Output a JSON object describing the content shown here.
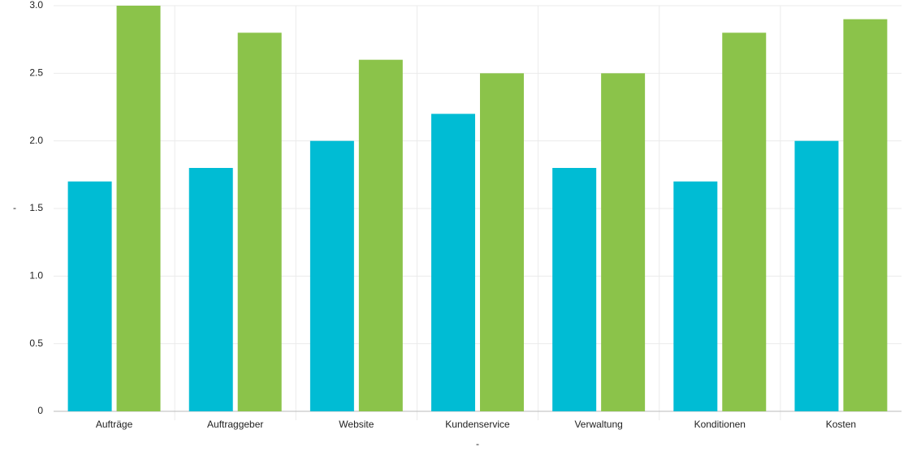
{
  "chart_data": {
    "type": "bar",
    "categories": [
      "Aufträge",
      "Auftraggeber",
      "Website",
      "Kundenservice",
      "Verwaltung",
      "Konditionen",
      "Kosten"
    ],
    "series": [
      {
        "color": "#00bcd4",
        "values": [
          1.7,
          1.8,
          2.0,
          2.2,
          1.8,
          1.7,
          2.0
        ]
      },
      {
        "color": "#8bc34a",
        "values": [
          3.0,
          2.8,
          2.6,
          2.5,
          2.5,
          2.8,
          2.9
        ]
      }
    ],
    "x_label": "-",
    "y_label": "-",
    "ylim": [
      0,
      3
    ],
    "yticks": [
      0,
      0.5,
      {
        "value": 1,
        "label": "1.0"
      },
      1.5,
      {
        "value": 2,
        "label": "2.0"
      },
      2.5,
      {
        "value": 3,
        "label": "3.0"
      }
    ],
    "grid": true
  }
}
